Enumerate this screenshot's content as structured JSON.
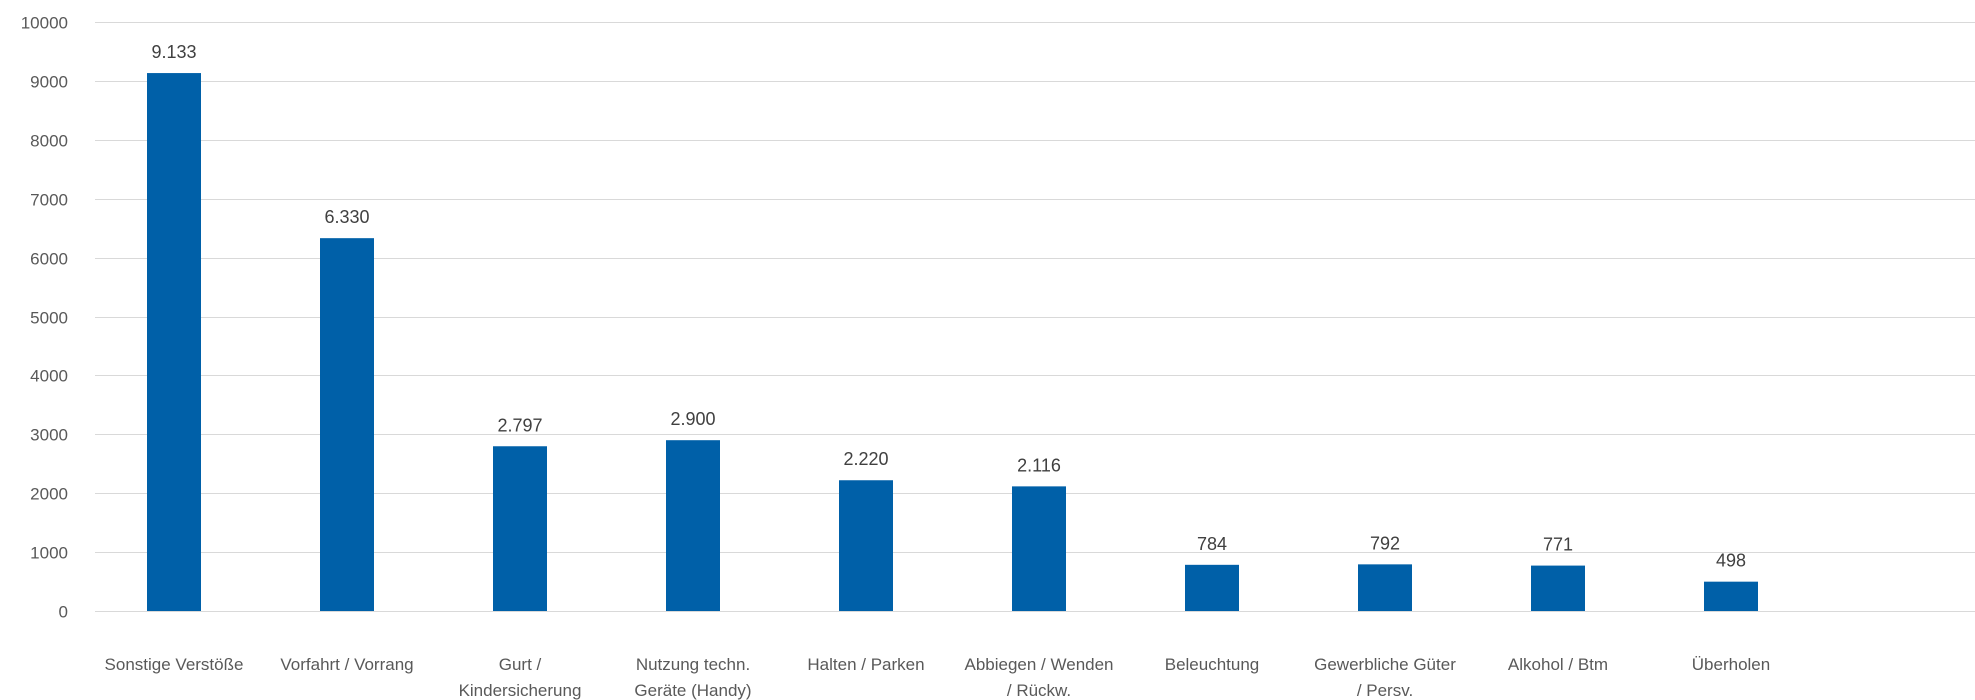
{
  "chart_data": {
    "type": "bar",
    "title": "",
    "xlabel": "",
    "ylabel": "",
    "ylim": [
      0,
      10000
    ],
    "yticks": [
      0,
      1000,
      2000,
      3000,
      4000,
      5000,
      6000,
      7000,
      8000,
      9000,
      10000
    ],
    "grid": true,
    "legend": "none",
    "bar_color": "#0060A8",
    "categories": [
      [
        "Sonstige Verstöße"
      ],
      [
        "Vorfahrt / Vorrang"
      ],
      [
        "Gurt /",
        "Kindersicherung"
      ],
      [
        "Nutzung techn.",
        "Geräte (Handy)"
      ],
      [
        "Halten / Parken"
      ],
      [
        "Abbiegen / Wenden",
        "/ Rückw."
      ],
      [
        "Beleuchtung"
      ],
      [
        "Gewerbliche Güter",
        "/ Persv."
      ],
      [
        "Alkohol / Btm"
      ],
      [
        "Überholen"
      ]
    ],
    "values": [
      9133,
      6330,
      2797,
      2900,
      2220,
      2116,
      784,
      792,
      771,
      498
    ],
    "value_labels": [
      "9.133",
      "6.330",
      "2.797",
      "2.900",
      "2.220",
      "2.116",
      "784",
      "792",
      "771",
      "498"
    ]
  }
}
